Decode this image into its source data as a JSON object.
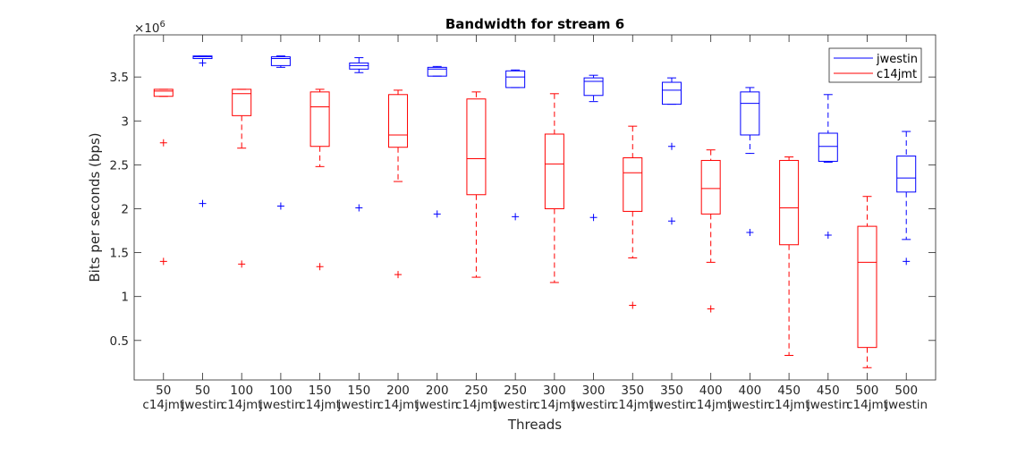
{
  "chart_data": {
    "type": "boxplot",
    "title": "Bandwidth for stream 6",
    "xlabel": "Threads",
    "ylabel": "Bits per seconds (bps)",
    "y_exponent_label": "×10",
    "y_exponent": "6",
    "ylim": [
      0.05,
      3.98
    ],
    "yticks": [
      0.5,
      1,
      1.5,
      2,
      2.5,
      3,
      3.5
    ],
    "ytick_labels": [
      "0.5",
      "1",
      "1.5",
      "2",
      "2.5",
      "3",
      "3.5"
    ],
    "grid": false,
    "legend": {
      "placement": "top-right",
      "entries": [
        {
          "name": "jwestin",
          "color": "#0000ff"
        },
        {
          "name": "c14jmt",
          "color": "#ff0000"
        }
      ]
    },
    "groups": [
      {
        "label_line1": "50",
        "label_line2": "c14jmt",
        "series": "c14jmt",
        "whisker_low": 3.28,
        "q1": 3.28,
        "median": 3.34,
        "q3": 3.36,
        "whisker_high": 3.36,
        "outliers": [
          2.75,
          1.4
        ]
      },
      {
        "label_line1": "50",
        "label_line2": "jwestin",
        "series": "jwestin",
        "whisker_low": 3.71,
        "q1": 3.71,
        "median": 3.73,
        "q3": 3.74,
        "whisker_high": 3.74,
        "outliers": [
          3.66,
          2.06
        ]
      },
      {
        "label_line1": "100",
        "label_line2": "c14jmt",
        "series": "c14jmt",
        "whisker_low": 2.69,
        "q1": 3.06,
        "median": 3.31,
        "q3": 3.36,
        "whisker_high": 3.36,
        "outliers": [
          1.37
        ]
      },
      {
        "label_line1": "100",
        "label_line2": "jwestin",
        "series": "jwestin",
        "whisker_low": 3.61,
        "q1": 3.63,
        "median": 3.71,
        "q3": 3.73,
        "whisker_high": 3.74,
        "outliers": [
          2.03
        ]
      },
      {
        "label_line1": "150",
        "label_line2": "c14jmt",
        "series": "c14jmt",
        "whisker_low": 2.48,
        "q1": 2.71,
        "median": 3.16,
        "q3": 3.33,
        "whisker_high": 3.36,
        "outliers": [
          1.34
        ]
      },
      {
        "label_line1": "150",
        "label_line2": "jwestin",
        "series": "jwestin",
        "whisker_low": 3.55,
        "q1": 3.59,
        "median": 3.63,
        "q3": 3.66,
        "whisker_high": 3.72,
        "outliers": [
          2.01
        ]
      },
      {
        "label_line1": "200",
        "label_line2": "c14jmt",
        "series": "c14jmt",
        "whisker_low": 2.31,
        "q1": 2.7,
        "median": 2.84,
        "q3": 3.3,
        "whisker_high": 3.35,
        "outliers": [
          1.25
        ]
      },
      {
        "label_line1": "200",
        "label_line2": "jwestin",
        "series": "jwestin",
        "whisker_low": 3.51,
        "q1": 3.51,
        "median": 3.59,
        "q3": 3.61,
        "whisker_high": 3.62,
        "outliers": [
          1.94
        ]
      },
      {
        "label_line1": "250",
        "label_line2": "c14jmt",
        "series": "c14jmt",
        "whisker_low": 1.22,
        "q1": 2.16,
        "median": 2.57,
        "q3": 3.25,
        "whisker_high": 3.33,
        "outliers": []
      },
      {
        "label_line1": "250",
        "label_line2": "jwestin",
        "series": "jwestin",
        "whisker_low": 3.38,
        "q1": 3.38,
        "median": 3.5,
        "q3": 3.57,
        "whisker_high": 3.58,
        "outliers": [
          1.91
        ]
      },
      {
        "label_line1": "300",
        "label_line2": "c14jmt",
        "series": "c14jmt",
        "whisker_low": 1.16,
        "q1": 2.0,
        "median": 2.51,
        "q3": 2.85,
        "whisker_high": 3.31,
        "outliers": []
      },
      {
        "label_line1": "300",
        "label_line2": "jwestin",
        "series": "jwestin",
        "whisker_low": 3.22,
        "q1": 3.29,
        "median": 3.45,
        "q3": 3.49,
        "whisker_high": 3.52,
        "outliers": [
          1.9
        ]
      },
      {
        "label_line1": "350",
        "label_line2": "c14jmt",
        "series": "c14jmt",
        "whisker_low": 1.44,
        "q1": 1.97,
        "median": 2.41,
        "q3": 2.58,
        "whisker_high": 2.94,
        "outliers": [
          0.9
        ]
      },
      {
        "label_line1": "350",
        "label_line2": "jwestin",
        "series": "jwestin",
        "whisker_low": 3.19,
        "q1": 3.19,
        "median": 3.35,
        "q3": 3.44,
        "whisker_high": 3.49,
        "outliers": [
          2.71,
          1.86
        ]
      },
      {
        "label_line1": "400",
        "label_line2": "c14jmt",
        "series": "c14jmt",
        "whisker_low": 1.39,
        "q1": 1.94,
        "median": 2.23,
        "q3": 2.55,
        "whisker_high": 2.67,
        "outliers": [
          0.86
        ]
      },
      {
        "label_line1": "400",
        "label_line2": "jwestin",
        "series": "jwestin",
        "whisker_low": 2.63,
        "q1": 2.84,
        "median": 3.2,
        "q3": 3.33,
        "whisker_high": 3.38,
        "outliers": [
          1.73
        ]
      },
      {
        "label_line1": "450",
        "label_line2": "c14jmt",
        "series": "c14jmt",
        "whisker_low": 0.33,
        "q1": 1.59,
        "median": 2.01,
        "q3": 2.55,
        "whisker_high": 2.59,
        "outliers": []
      },
      {
        "label_line1": "450",
        "label_line2": "jwestin",
        "series": "jwestin",
        "whisker_low": 2.53,
        "q1": 2.54,
        "median": 2.71,
        "q3": 2.86,
        "whisker_high": 3.3,
        "outliers": [
          1.7
        ]
      },
      {
        "label_line1": "500",
        "label_line2": "c14jmt",
        "series": "c14jmt",
        "whisker_low": 0.19,
        "q1": 0.42,
        "median": 1.39,
        "q3": 1.8,
        "whisker_high": 2.14,
        "outliers": []
      },
      {
        "label_line1": "500",
        "label_line2": "jwestin",
        "series": "jwestin",
        "whisker_low": 1.65,
        "q1": 2.19,
        "median": 2.35,
        "q3": 2.6,
        "whisker_high": 2.88,
        "outliers": [
          1.4
        ]
      }
    ]
  }
}
